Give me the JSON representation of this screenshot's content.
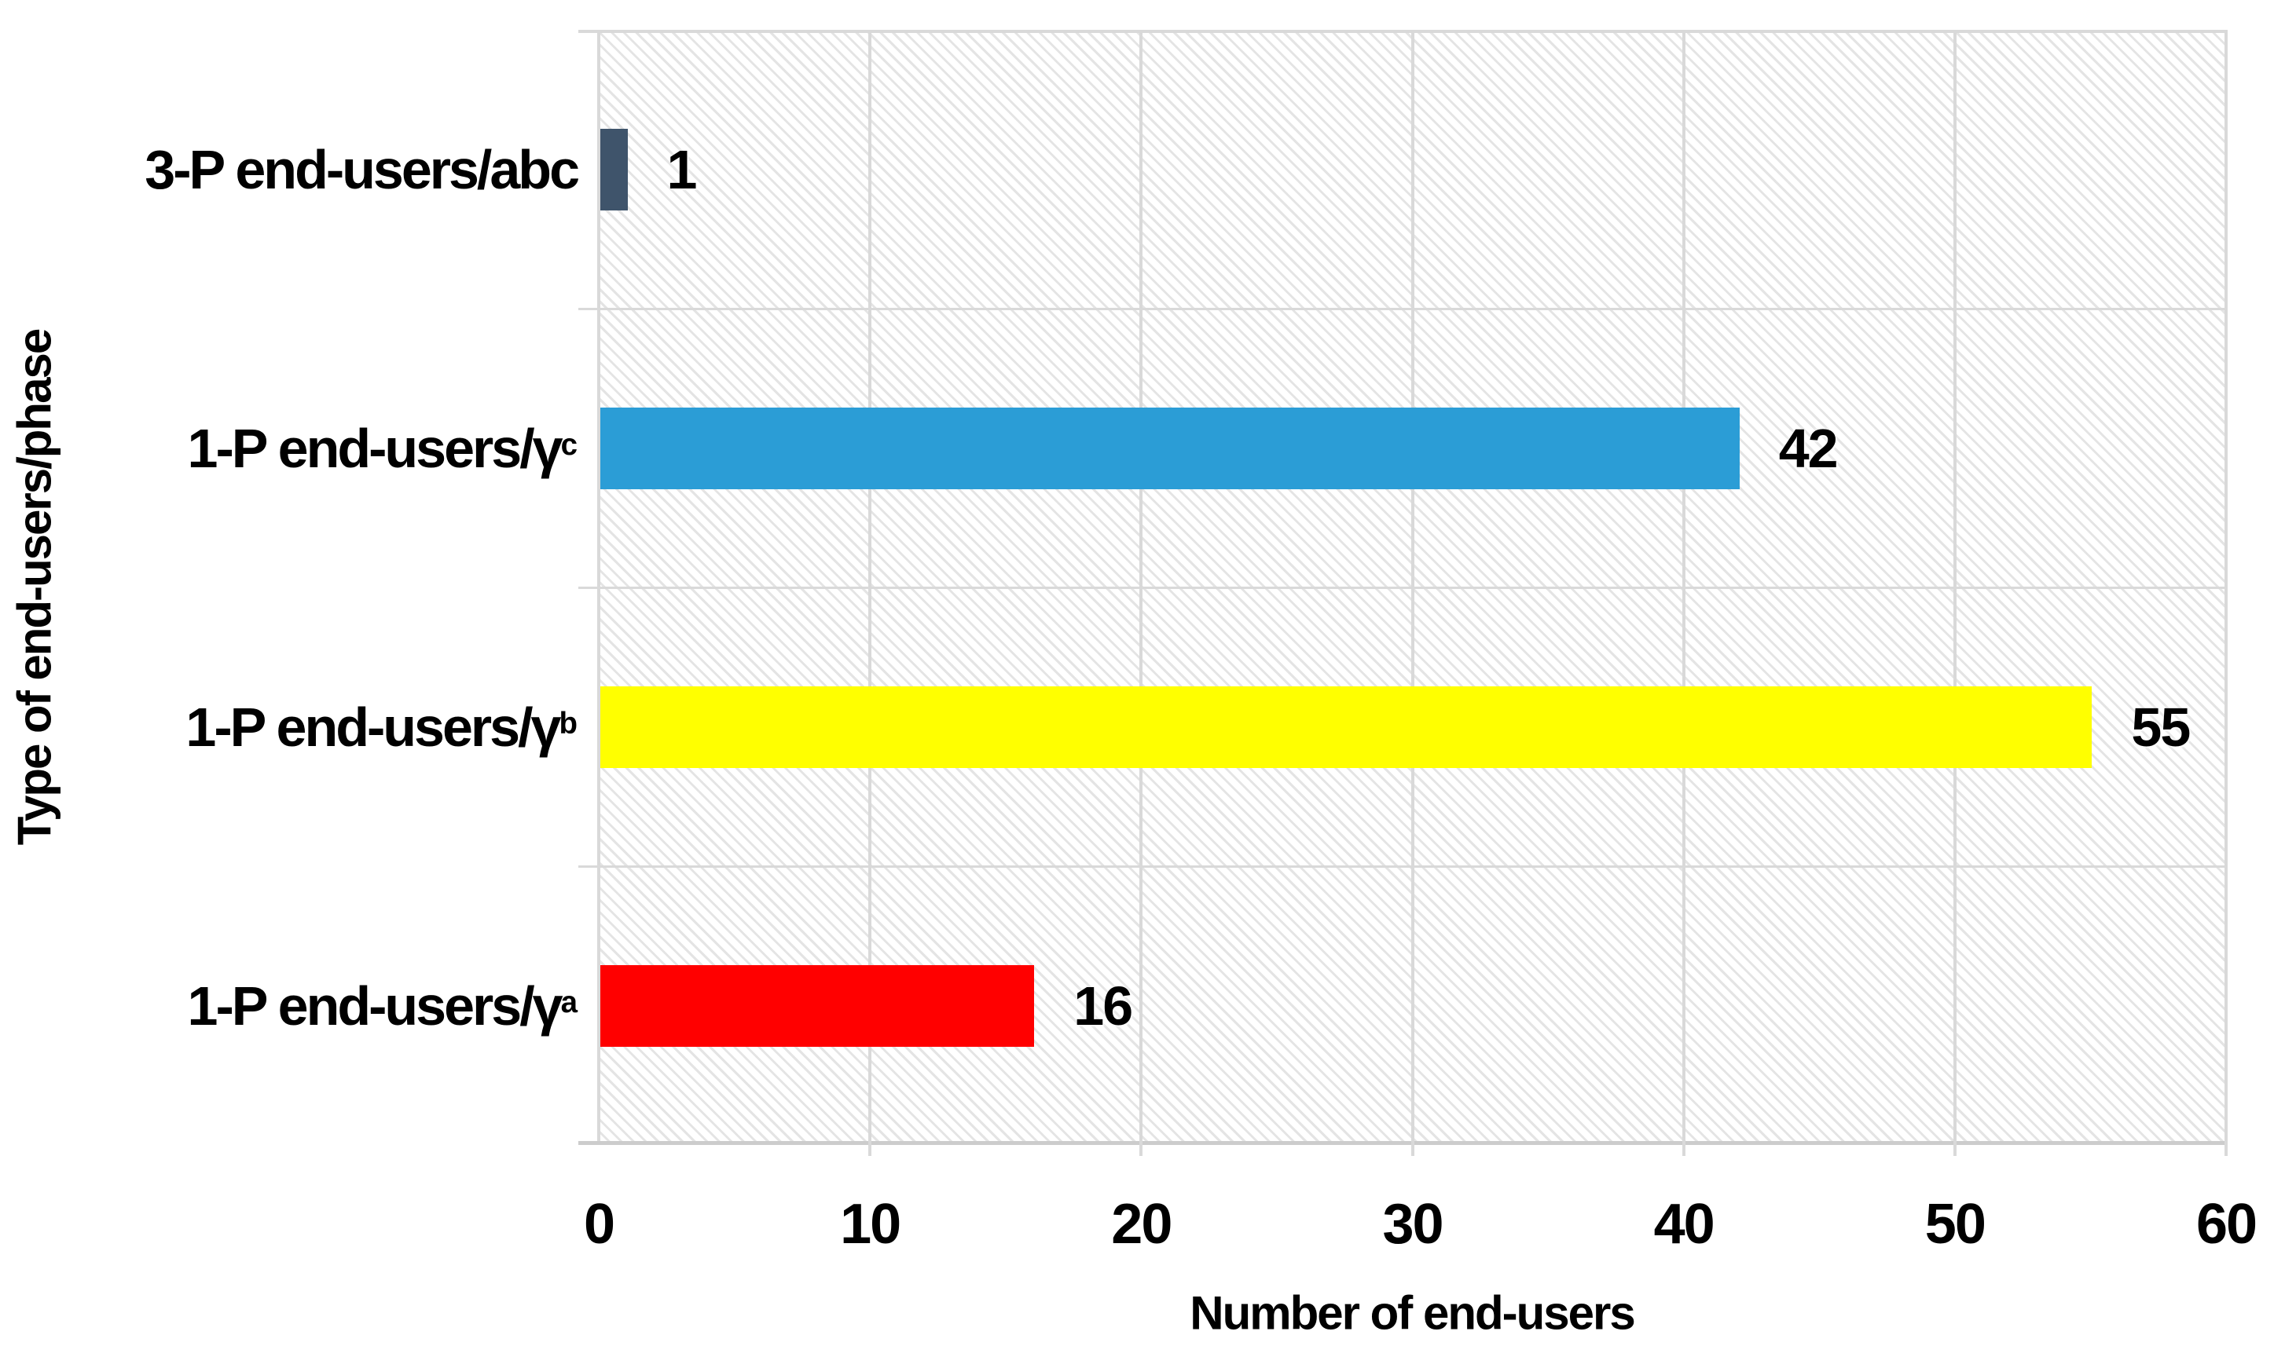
{
  "chart_data": {
    "type": "bar",
    "orientation": "horizontal",
    "title": "",
    "xlabel": "Number of end-users",
    "ylabel": "Type of end-users/phase",
    "categories": [
      {
        "main": "3-P end-users/abc",
        "sub": ""
      },
      {
        "main": "1-P end-users/γ",
        "sub": "c"
      },
      {
        "main": "1-P end-users/γ",
        "sub": "b"
      },
      {
        "main": "1-P end-users/γ",
        "sub": "a"
      }
    ],
    "values": [
      1,
      42,
      55,
      16
    ],
    "value_labels": [
      "1",
      "42",
      "55",
      "16"
    ],
    "bar_colors": [
      "#3F546B",
      "#2B9DD6",
      "#FFFF00",
      "#FF0000"
    ],
    "xlim": [
      0,
      60
    ],
    "x_ticks": [
      0,
      10,
      20,
      30,
      40,
      50,
      60
    ],
    "grid": "vertical-and-band-separators",
    "legend": "none",
    "plot_background": "white-with-light-diagonal-hatch"
  },
  "colors": {
    "gridline": "#d9d9d9",
    "axis": "#cccccc",
    "hatch": "#e5e5e5",
    "text": "#000000"
  }
}
